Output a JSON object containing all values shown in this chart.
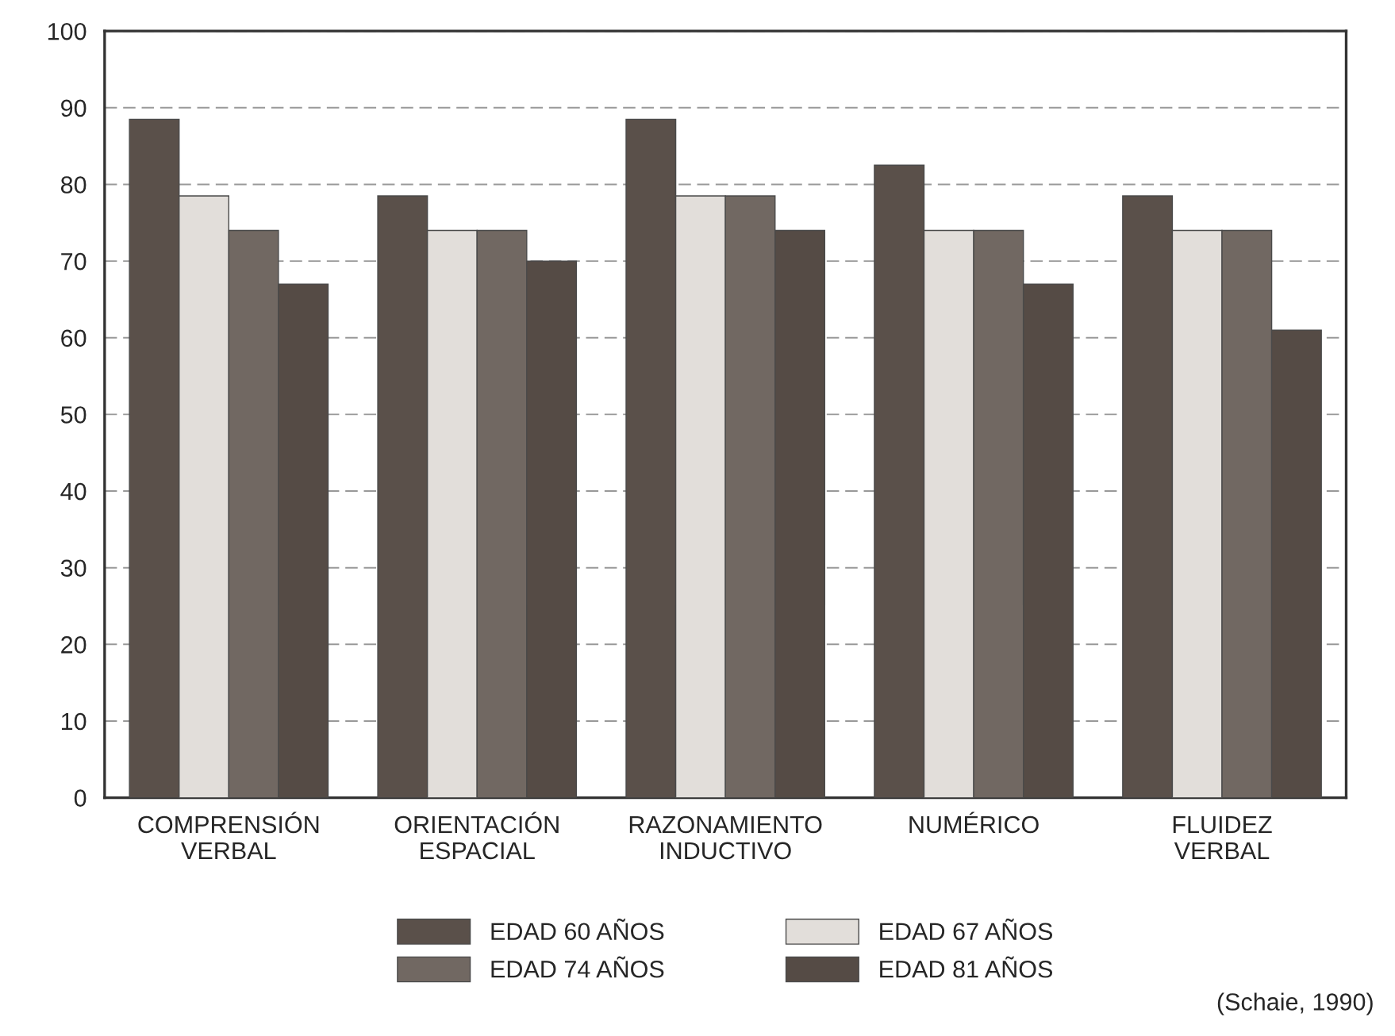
{
  "chart_data": {
    "type": "bar",
    "categories": [
      "COMPRENSIÓN\nVERBAL",
      "ORIENTACIÓN\nESPACIAL",
      "RAZONAMIENTO\nINDUCTIVO",
      "NUMÉRICO",
      "FLUIDEZ\nVERBAL"
    ],
    "series": [
      {
        "name": "EDAD 60 AÑOS",
        "color": "#5a504a",
        "values": [
          88.5,
          78.5,
          88.5,
          82.5,
          78.5
        ]
      },
      {
        "name": "EDAD 67 AÑOS",
        "color": "#e2deda",
        "values": [
          78.5,
          74,
          78.5,
          74,
          74
        ]
      },
      {
        "name": "EDAD 74 AÑOS",
        "color": "#716862",
        "values": [
          74,
          74,
          78.5,
          74,
          74
        ]
      },
      {
        "name": "EDAD 81 AÑOS",
        "color": "#554b45",
        "values": [
          67,
          70,
          74,
          67,
          61
        ]
      }
    ],
    "ylim": [
      0,
      100
    ],
    "yticks": [
      0,
      10,
      20,
      30,
      40,
      50,
      60,
      70,
      80,
      90,
      100
    ],
    "grid": "y",
    "legend": "bottom",
    "annotations": [
      "(Schaie, 1990)"
    ]
  }
}
